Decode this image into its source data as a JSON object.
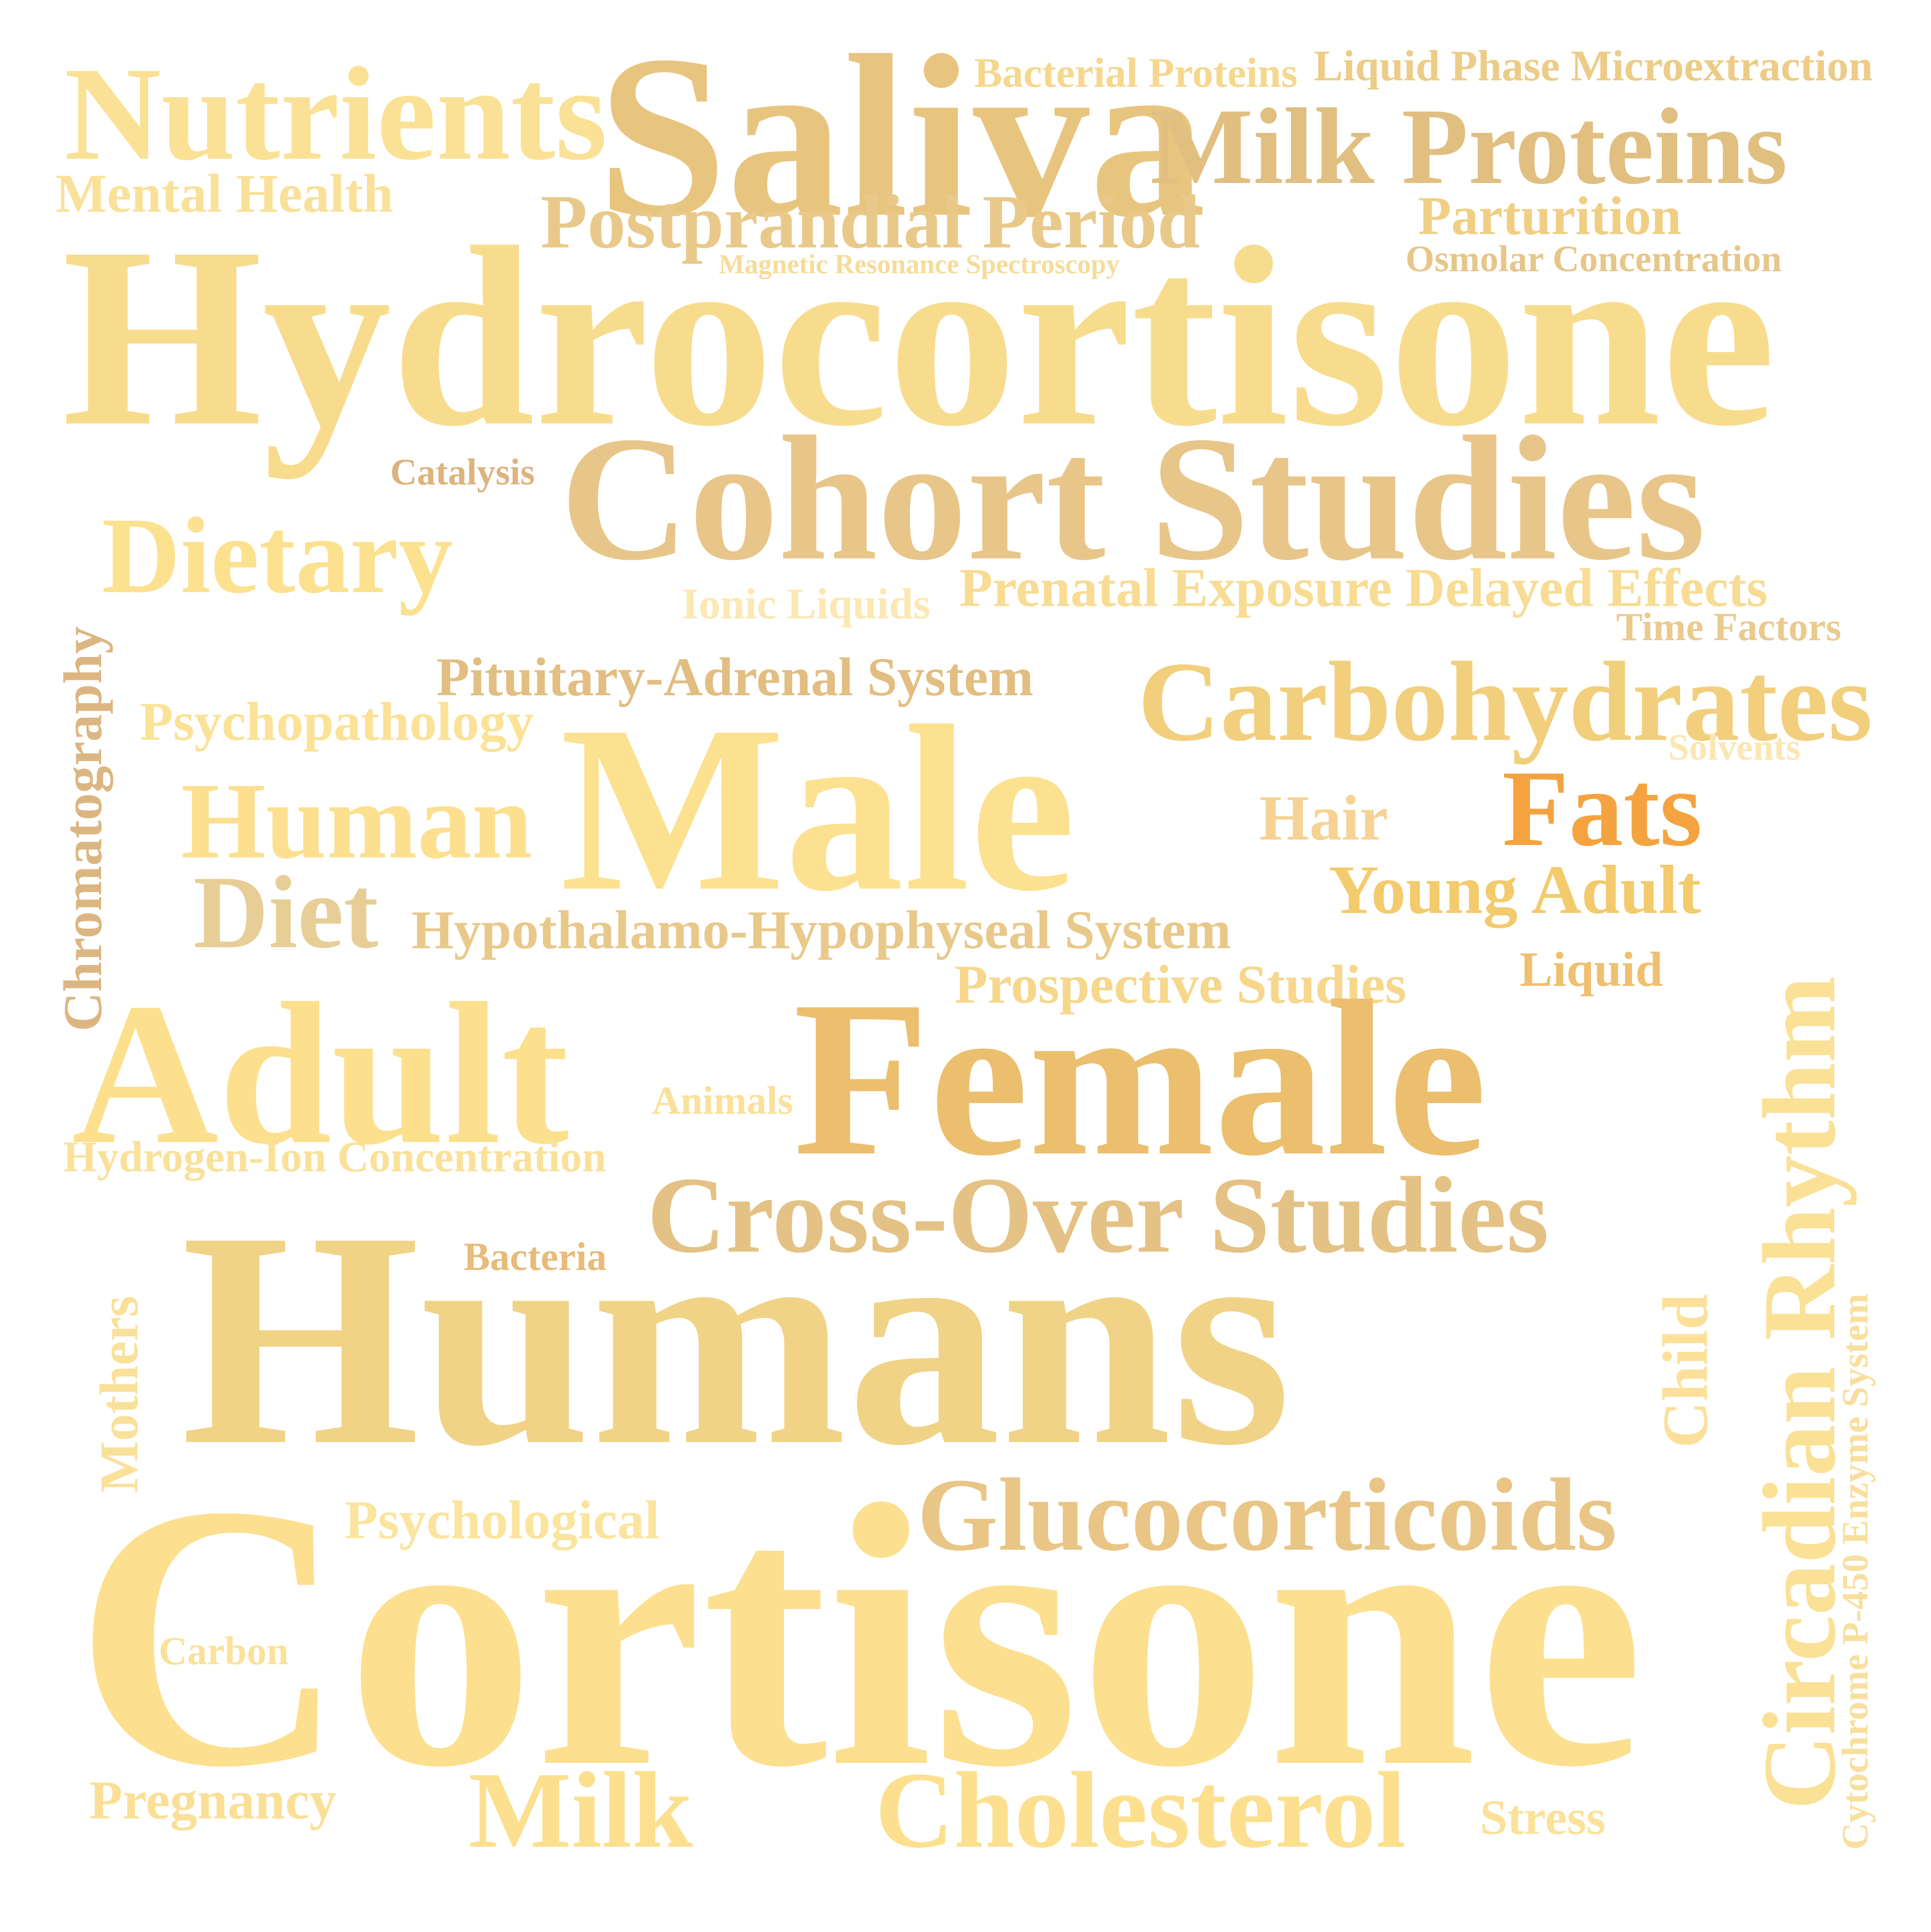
{
  "words": [
    {
      "id": "nutrients",
      "text": "Nutrients",
      "color": "#FAE195"
    },
    {
      "id": "saliva",
      "text": "Saliva",
      "color": "#E8C57F"
    },
    {
      "id": "bacterial-proteins",
      "text": "Bacterial Proteins",
      "color": "#F5D88E"
    },
    {
      "id": "liquid-phase-microextraction",
      "text": "Liquid Phase Microextraction",
      "color": "#ECCC86"
    },
    {
      "id": "milk-proteins",
      "text": "Milk Proteins",
      "color": "#E0BF80"
    },
    {
      "id": "mental-health",
      "text": "Mental Health",
      "color": "#FAE19A"
    },
    {
      "id": "postprandial-period",
      "text": "Postprandial Period",
      "color": "#E9C98A"
    },
    {
      "id": "parturition",
      "text": "Parturition",
      "color": "#F0CF85"
    },
    {
      "id": "magnetic-resonance-spectroscopy",
      "text": "Magnetic Resonance Spectroscopy",
      "color": "#F6DC9A"
    },
    {
      "id": "osmolar-concentration",
      "text": "Osmolar Concentration",
      "color": "#E7C68A"
    },
    {
      "id": "hydrocortisone",
      "text": "Hydrocortisone",
      "color": "#F8DC8E"
    },
    {
      "id": "catalysis",
      "text": "Catalysis",
      "color": "#DDB37E"
    },
    {
      "id": "cohort-studies",
      "text": "Cohort Studies",
      "color": "#E8C68A"
    },
    {
      "id": "dietary",
      "text": "Dietary",
      "color": "#FCE18E"
    },
    {
      "id": "ionic-liquids",
      "text": "Ionic Liquids",
      "color": "#FCE8B2"
    },
    {
      "id": "prenatal-exposure",
      "text": "Prenatal Exposure Delayed Effects",
      "color": "#F8DC93"
    },
    {
      "id": "time-factors",
      "text": "Time Factors",
      "color": "#EACA8E"
    },
    {
      "id": "chromatography",
      "text": "Chromatography",
      "color": "#DCB682"
    },
    {
      "id": "pituitary-adrenal",
      "text": "Pituitary-Adrenal System",
      "color": "#E2BE82"
    },
    {
      "id": "carbohydrates",
      "text": "Carbohydrates",
      "color": "#F2CF7C"
    },
    {
      "id": "psychopathology",
      "text": "Psychopathology",
      "color": "#FBE297"
    },
    {
      "id": "male",
      "text": "Male",
      "color": "#FCE190"
    },
    {
      "id": "solvents",
      "text": "Solvents",
      "color": "#FCE7B2"
    },
    {
      "id": "human",
      "text": "Human",
      "color": "#FCE08F"
    },
    {
      "id": "hair",
      "text": "Hair",
      "color": "#F6D394"
    },
    {
      "id": "fats",
      "text": "Fats",
      "color": "#F5A340"
    },
    {
      "id": "young-adult",
      "text": "Young Adult",
      "color": "#F3CA6C"
    },
    {
      "id": "diet",
      "text": "Diet",
      "color": "#E6CE96"
    },
    {
      "id": "hypothalamo",
      "text": "Hypothalamo-Hypophyseal System",
      "color": "#E9C98A"
    },
    {
      "id": "circadian-rhythm",
      "text": "Circadian Rhythm",
      "color": "#FAE196"
    },
    {
      "id": "liquid",
      "text": "Liquid",
      "color": "#EFC070"
    },
    {
      "id": "prospective-studies",
      "text": "Prospective Studies",
      "color": "#F6D78C"
    },
    {
      "id": "adult",
      "text": "Adult",
      "color": "#FCE08E"
    },
    {
      "id": "female",
      "text": "Female",
      "color": "#EBBF6E"
    },
    {
      "id": "animals",
      "text": "Animals",
      "color": "#FAE09A"
    },
    {
      "id": "hydrogen-ion",
      "text": "Hydrogen-Ion Concentration",
      "color": "#FAE19A"
    },
    {
      "id": "cross-over-studies",
      "text": "Cross-Over Studies",
      "color": "#E4C285"
    },
    {
      "id": "bacteria",
      "text": "Bacteria",
      "color": "#E8BB7A"
    },
    {
      "id": "mothers",
      "text": "Mothers",
      "color": "#FAE19A"
    },
    {
      "id": "child",
      "text": "Child",
      "color": "#FCE09A"
    },
    {
      "id": "cytochrome",
      "text": "Cytochrome P-450 Enzyme System",
      "color": "#F8DF9E"
    },
    {
      "id": "humans",
      "text": "Humans",
      "color": "#F0D386"
    },
    {
      "id": "psychological",
      "text": "Psychological",
      "color": "#FBE49E"
    },
    {
      "id": "glucocorticoids",
      "text": "Glucocorticoids",
      "color": "#E9C586"
    },
    {
      "id": "cortisone",
      "text": "Cortisone",
      "color": "#FCE08F"
    },
    {
      "id": "carbon",
      "text": "Carbon",
      "color": "#FBE29A"
    },
    {
      "id": "pregnancy",
      "text": "Pregnancy",
      "color": "#FAE097"
    },
    {
      "id": "milk",
      "text": "Milk",
      "color": "#FCE08F"
    },
    {
      "id": "cholesterol",
      "text": "Cholesterol",
      "color": "#FCE08F"
    },
    {
      "id": "stress",
      "text": "Stress",
      "color": "#FBE29A"
    }
  ]
}
